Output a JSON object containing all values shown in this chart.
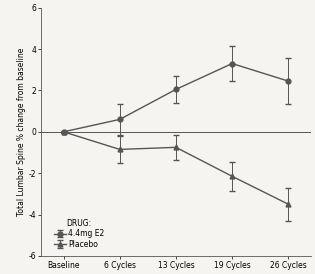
{
  "x_labels": [
    "Baseline",
    "6 Cycles",
    "13 Cycles",
    "19 Cycles",
    "26 Cycles"
  ],
  "x_values": [
    0,
    1,
    2,
    3,
    4
  ],
  "drug_e2_y": [
    0.0,
    0.6,
    2.05,
    3.3,
    2.45
  ],
  "drug_e2_yerr": [
    0.05,
    0.75,
    0.65,
    0.85,
    1.1
  ],
  "placebo_y": [
    0.0,
    -0.85,
    -0.75,
    -2.15,
    -3.5
  ],
  "placebo_yerr": [
    0.05,
    0.65,
    0.6,
    0.7,
    0.8
  ],
  "ylim": [
    -6,
    6
  ],
  "yticks": [
    -6,
    -4,
    -2,
    0,
    2,
    4,
    6
  ],
  "ylabel": "Total Lumbar Spine % change from baseline",
  "legend_title": "DRUG:",
  "legend_e2": "4.4mg E2",
  "legend_placebo": "Placebo",
  "line_color": "#555555",
  "bg_color": "#f5f4f1",
  "axis_color": "#555555",
  "ylabel_fontsize": 5.5,
  "tick_fontsize": 5.5,
  "legend_fontsize": 5.5,
  "markersize": 3.5,
  "linewidth": 1.0,
  "capsize": 2.0,
  "elinewidth": 0.7
}
